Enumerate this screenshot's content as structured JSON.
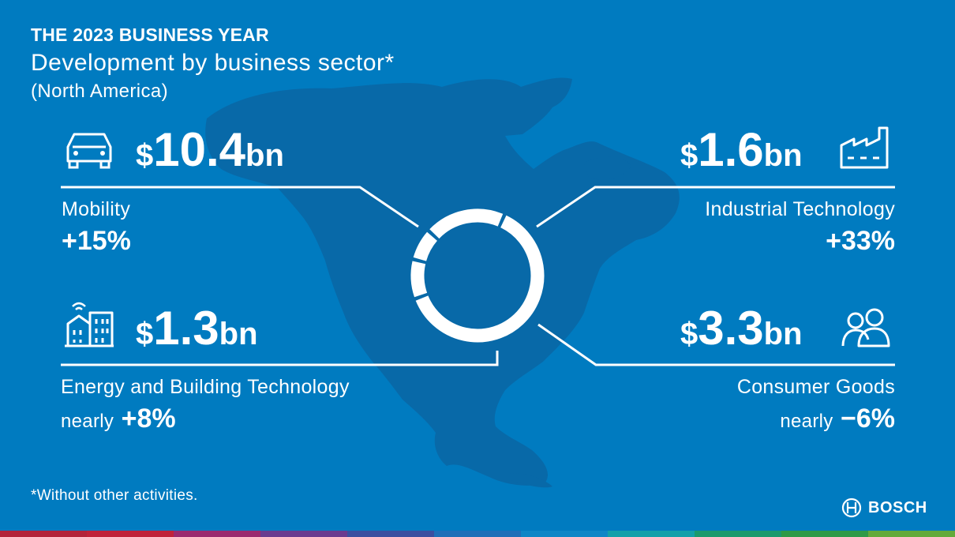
{
  "header": {
    "kicker": "THE 2023 BUSINESS YEAR",
    "title": "Development by business sector*",
    "subtitle": "(North America)"
  },
  "sectors": {
    "mobility": {
      "currency": "$",
      "amount": "10.4",
      "unit": "bn",
      "label": "Mobility",
      "change_prefix": "",
      "change": "+15%"
    },
    "industrial": {
      "currency": "$",
      "amount": "1.6",
      "unit": "bn",
      "label": "Industrial Technology",
      "change_prefix": "",
      "change": "+33%"
    },
    "energy": {
      "currency": "$",
      "amount": "1.3",
      "unit": "bn",
      "label": "Energy and Building Technology",
      "change_prefix": "nearly",
      "change": "+8%"
    },
    "consumer": {
      "currency": "$",
      "amount": "3.3",
      "unit": "bn",
      "label": "Consumer Goods",
      "change_prefix": "nearly",
      "change": "−6%"
    }
  },
  "footnote": "*Without other activities.",
  "brand": {
    "name": "BOSCH"
  },
  "colors": {
    "background": "#007bc0",
    "map": "#0869a8",
    "text": "#ffffff",
    "stripe": [
      "#b3233a",
      "#c0223a",
      "#9b2a6f",
      "#6a3b8f",
      "#3b4fa0",
      "#1f6fb8",
      "#0e86c6",
      "#12a0a9",
      "#1a9a6d",
      "#2e9a47",
      "#63aa3a"
    ]
  },
  "icons": {
    "mobility": "car-icon",
    "industrial": "factory-icon",
    "energy": "smart-building-icon",
    "consumer": "people-icon"
  },
  "chart_data": {
    "type": "pie",
    "style": "donut",
    "categories": [
      "Mobility",
      "Industrial Technology",
      "Energy and Building Technology",
      "Consumer Goods"
    ],
    "values": [
      10.4,
      1.6,
      1.3,
      3.3
    ],
    "units": "$ bn",
    "title": "Development by business sector*",
    "legend": "labels around chart"
  }
}
